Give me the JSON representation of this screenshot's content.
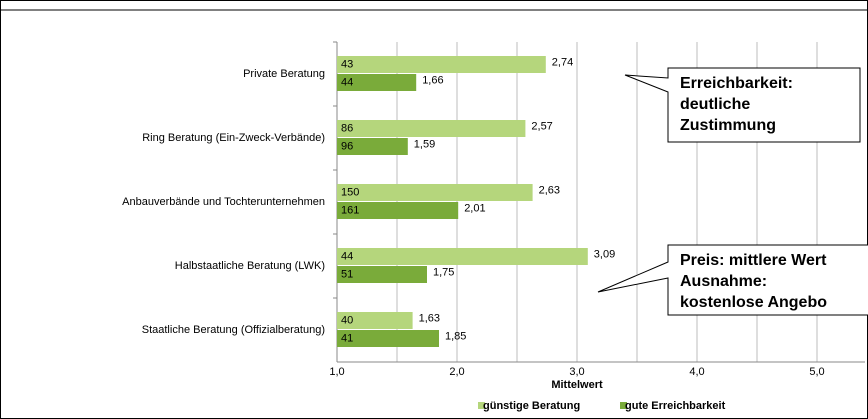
{
  "chart_data": {
    "type": "hbar",
    "categories": [
      "Private Beratung",
      "Ring Beratung (Ein-Zweck-Verbände)",
      "Anbauverbände und Tochterunternehmen",
      "Halbstaatliche Beratung (LWK)",
      "Staatliche Beratung (Offizialberatung)"
    ],
    "series": [
      {
        "name": "günstige Beratung",
        "color": "#b5d67c",
        "values": [
          2.74,
          2.57,
          2.63,
          3.09,
          1.63
        ],
        "value_labels": [
          "2,74",
          "2,57",
          "2,63",
          "3,09",
          "1,63"
        ],
        "n": [
          43,
          86,
          150,
          44,
          40
        ]
      },
      {
        "name": "gute Erreichbarkeit",
        "color": "#7aab3a",
        "values": [
          1.66,
          1.59,
          2.01,
          1.75,
          1.85
        ],
        "value_labels": [
          "1,66",
          "1,59",
          "2,01",
          "1,75",
          "1,85"
        ],
        "n": [
          44,
          96,
          161,
          51,
          41
        ]
      }
    ],
    "xlim": [
      1,
      5.4
    ],
    "xticks": [
      {
        "value": 1,
        "label": "1,0"
      },
      {
        "value": 2,
        "label": "2,0"
      },
      {
        "value": 3,
        "label": "3,0"
      },
      {
        "value": 4,
        "label": "4,0"
      },
      {
        "value": 5,
        "label": "5,0"
      }
    ],
    "minor_xticks": [
      1.5,
      2.5,
      3.5,
      4.5
    ],
    "grid": true,
    "x_label": "Mittelwert",
    "legend": "bottom",
    "annotations": [
      [
        "Erreichbarkeit:",
        "deutliche",
        "Zustimmung"
      ],
      [
        "Preis: mittlere Wert",
        "Ausnahme:",
        "kostenlose Angebo"
      ]
    ]
  }
}
